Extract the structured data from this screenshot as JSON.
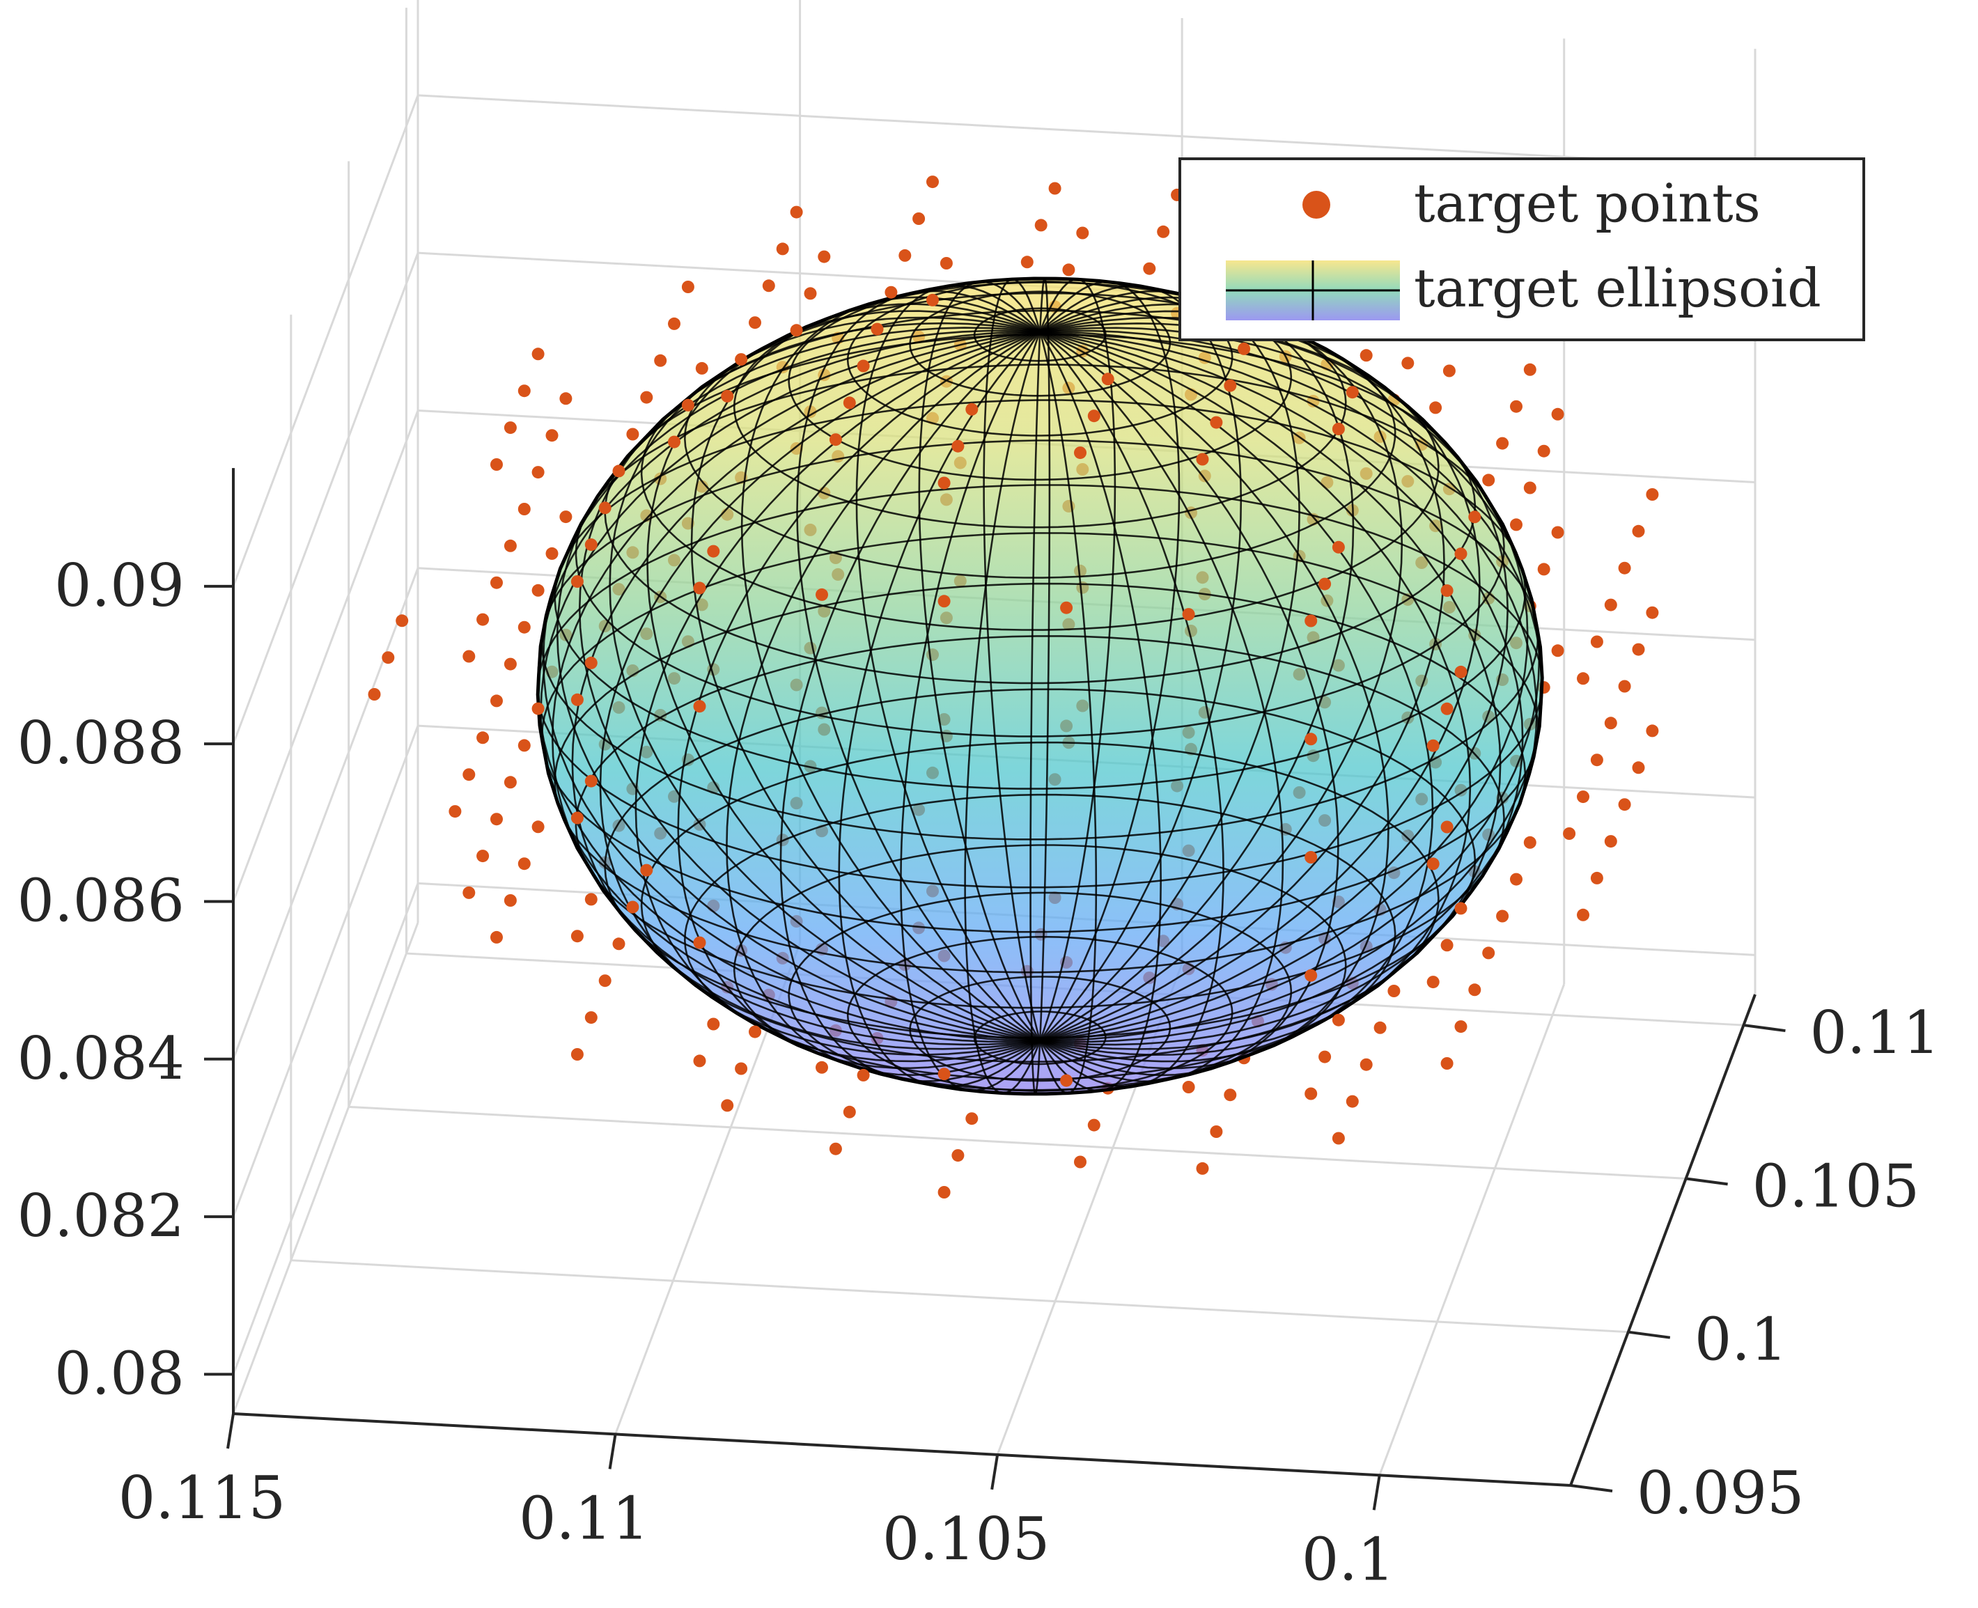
{
  "chart_data": {
    "type": "scatter3d",
    "title": "",
    "xlabel": "",
    "ylabel": "",
    "zlabel": "",
    "grid": true,
    "legend_position": "top-right",
    "x_axis": {
      "range": [
        0.0975,
        0.115
      ],
      "ticks": [
        0.115,
        0.11,
        0.105,
        0.1
      ],
      "tick_labels": [
        "0.115",
        "0.11",
        "0.105",
        "0.1"
      ]
    },
    "y_axis": {
      "range": [
        0.095,
        0.111
      ],
      "ticks": [
        0.095,
        0.1,
        0.105,
        0.11
      ],
      "tick_labels": [
        "0.095",
        "0.1",
        "0.105",
        "0.11"
      ]
    },
    "z_axis": {
      "range": [
        0.0795,
        0.0915
      ],
      "ticks": [
        0.08,
        0.082,
        0.084,
        0.086,
        0.088,
        0.09
      ],
      "tick_labels": [
        "0.08",
        "0.082",
        "0.084",
        "0.086",
        "0.088",
        "0.09"
      ]
    },
    "series": [
      {
        "name": "target points",
        "kind": "scatter",
        "color": "#D95319",
        "description_grid": {
          "x_range": [
            0.098,
            0.114
          ],
          "y_range": [
            0.097,
            0.109
          ],
          "z_levels": [
            0.082,
            0.0835,
            0.085,
            0.0865,
            0.088,
            0.0895,
            0.091
          ],
          "steps": 11
        }
      },
      {
        "name": "target ellipsoid",
        "kind": "surface",
        "center": [
          0.1055,
          0.102,
          0.0865
        ],
        "radii": [
          0.0065,
          0.0065,
          0.0045
        ],
        "colormap": [
          "#8F7FF0",
          "#5FA8F5",
          "#4CC6CC",
          "#8FD39A",
          "#D8E07A",
          "#F5E06A"
        ],
        "mesh_color": "#000000"
      }
    ]
  },
  "legend": {
    "items": [
      {
        "label": "target points",
        "color": "#D95319"
      },
      {
        "label": "target ellipsoid",
        "gradient": [
          "#F6E27A",
          "#7FD3B0",
          "#8A86EE"
        ]
      }
    ]
  }
}
